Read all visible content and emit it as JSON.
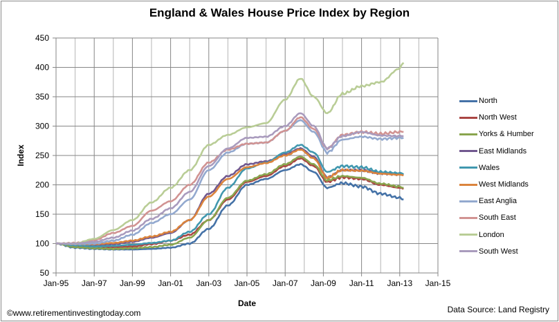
{
  "chart_data": {
    "type": "line",
    "title": "England & Wales House Price Index by Region",
    "xlabel": "Date",
    "ylabel": "Index",
    "xlim": [
      1995,
      2015
    ],
    "ylim": [
      50,
      450
    ],
    "yticks": [
      50,
      100,
      150,
      200,
      250,
      300,
      350,
      400,
      450
    ],
    "xticks": [
      {
        "value": 1995,
        "label": "Jan-95"
      },
      {
        "value": 1997,
        "label": "Jan-97"
      },
      {
        "value": 1999,
        "label": "Jan-99"
      },
      {
        "value": 2001,
        "label": "Jan-01"
      },
      {
        "value": 2003,
        "label": "Jan-03"
      },
      {
        "value": 2005,
        "label": "Jan-05"
      },
      {
        "value": 2007,
        "label": "Jan-07"
      },
      {
        "value": 2009,
        "label": "Jan-09"
      },
      {
        "value": 2011,
        "label": "Jan-11"
      },
      {
        "value": 2013,
        "label": "Jan-13"
      },
      {
        "value": 2015,
        "label": "Jan-15"
      }
    ],
    "grid": true,
    "legend_position": "right",
    "series": [
      {
        "name": "North",
        "color": "#4572a7",
        "x": [
          1995,
          1996,
          1997,
          1998,
          1999,
          2000,
          2001,
          2002,
          2003,
          2004,
          2005,
          2006,
          2007,
          2007.8,
          2008.5,
          2009.2,
          2010,
          2011,
          2012,
          2013,
          2013.2
        ],
        "values": [
          100,
          93,
          91,
          90,
          90,
          91,
          93,
          100,
          125,
          165,
          200,
          210,
          225,
          235,
          222,
          195,
          203,
          197,
          185,
          178,
          175
        ]
      },
      {
        "name": "North West",
        "color": "#aa4643",
        "x": [
          1995,
          1996,
          1997,
          1998,
          1999,
          2000,
          2001,
          2002,
          2003,
          2004,
          2005,
          2006,
          2007,
          2007.8,
          2008.5,
          2009.2,
          2010,
          2011,
          2012,
          2013,
          2013.2
        ],
        "values": [
          100,
          95,
          93,
          94,
          95,
          99,
          105,
          115,
          140,
          175,
          205,
          215,
          232,
          245,
          232,
          205,
          213,
          210,
          200,
          195,
          193
        ]
      },
      {
        "name": "Yorks & Humber",
        "color": "#89a54e",
        "x": [
          1995,
          1996,
          1997,
          1998,
          1999,
          2000,
          2001,
          2002,
          2003,
          2004,
          2005,
          2006,
          2007,
          2007.8,
          2008.5,
          2009.2,
          2010,
          2011,
          2012,
          2013,
          2013.2
        ],
        "values": [
          100,
          94,
          92,
          91,
          92,
          94,
          98,
          110,
          140,
          178,
          207,
          218,
          235,
          248,
          235,
          208,
          215,
          212,
          202,
          197,
          195
        ]
      },
      {
        "name": "East Midlands",
        "color": "#71588f",
        "x": [
          1995,
          1996,
          1997,
          1998,
          1999,
          2000,
          2001,
          2002,
          2003,
          2004,
          2005,
          2006,
          2007,
          2007.8,
          2008.5,
          2009.2,
          2010,
          2011,
          2012,
          2013,
          2013.2
        ],
        "values": [
          100,
          98,
          97,
          99,
          103,
          110,
          118,
          140,
          185,
          215,
          235,
          240,
          252,
          262,
          248,
          213,
          225,
          225,
          220,
          218,
          218
        ]
      },
      {
        "name": "Wales",
        "color": "#4198af",
        "x": [
          1995,
          1996,
          1997,
          1998,
          1999,
          2000,
          2001,
          2002,
          2003,
          2004,
          2005,
          2006,
          2007,
          2007.8,
          2008.5,
          2009.2,
          2010,
          2011,
          2012,
          2013,
          2013.2
        ],
        "values": [
          100,
          97,
          95,
          96,
          98,
          101,
          105,
          120,
          150,
          195,
          228,
          238,
          255,
          268,
          255,
          222,
          232,
          230,
          222,
          220,
          218
        ]
      },
      {
        "name": "West Midlands",
        "color": "#db843d",
        "x": [
          1995,
          1996,
          1997,
          1998,
          1999,
          2000,
          2001,
          2002,
          2003,
          2004,
          2005,
          2006,
          2007,
          2007.8,
          2008.5,
          2009.2,
          2010,
          2011,
          2012,
          2013,
          2013.2
        ],
        "values": [
          100,
          99,
          99,
          101,
          105,
          112,
          120,
          140,
          180,
          210,
          230,
          237,
          250,
          260,
          245,
          212,
          225,
          224,
          219,
          217,
          216
        ]
      },
      {
        "name": "East Anglia",
        "color": "#93a9cf",
        "x": [
          1995,
          1996,
          1997,
          1998,
          1999,
          2000,
          2001,
          2002,
          2003,
          2004,
          2005,
          2006,
          2007,
          2007.8,
          2008.5,
          2009.2,
          2010,
          2011,
          2012,
          2013,
          2013.2
        ],
        "values": [
          100,
          99,
          100,
          105,
          115,
          135,
          150,
          175,
          225,
          255,
          270,
          272,
          292,
          310,
          290,
          255,
          277,
          282,
          278,
          280,
          280
        ]
      },
      {
        "name": "South East",
        "color": "#d19392",
        "x": [
          1995,
          1996,
          1997,
          1998,
          1999,
          2000,
          2001,
          2002,
          2003,
          2004,
          2005,
          2006,
          2007,
          2007.8,
          2008.5,
          2009.2,
          2010,
          2011,
          2012,
          2013,
          2013.2
        ],
        "values": [
          100,
          101,
          106,
          118,
          130,
          156,
          172,
          200,
          238,
          260,
          270,
          272,
          292,
          315,
          295,
          262,
          285,
          290,
          287,
          290,
          290
        ]
      },
      {
        "name": "London",
        "color": "#b9cd96",
        "x": [
          1995,
          1996,
          1997,
          1998,
          1999,
          2000,
          2001,
          2002,
          2003,
          2004,
          2005,
          2006,
          2007,
          2007.8,
          2008.5,
          2009.2,
          2010,
          2011,
          2012,
          2013,
          2013.2
        ],
        "values": [
          100,
          100,
          108,
          123,
          140,
          170,
          195,
          225,
          268,
          285,
          298,
          305,
          345,
          381,
          350,
          322,
          355,
          368,
          375,
          398,
          408
        ]
      },
      {
        "name": "South West",
        "color": "#a99bbd",
        "x": [
          1995,
          1996,
          1997,
          1998,
          1999,
          2000,
          2001,
          2002,
          2003,
          2004,
          2005,
          2006,
          2007,
          2007.8,
          2008.5,
          2009.2,
          2010,
          2011,
          2012,
          2013,
          2013.2
        ],
        "values": [
          100,
          100,
          103,
          110,
          122,
          142,
          160,
          188,
          232,
          262,
          280,
          282,
          300,
          322,
          300,
          262,
          283,
          290,
          284,
          283,
          283
        ]
      }
    ]
  },
  "footer": {
    "copyright": "©www.retirementinvestingtoday.com",
    "source": "Data Source: Land Registry"
  }
}
